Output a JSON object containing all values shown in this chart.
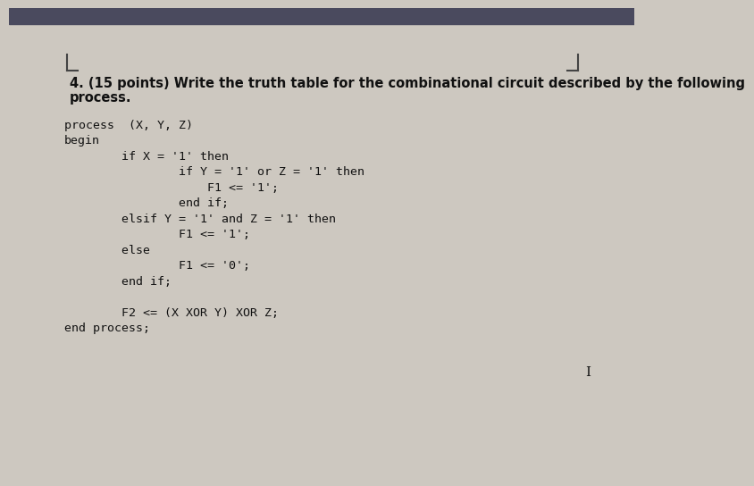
{
  "bg_color": "#cdc8c0",
  "top_bar_color": "#4a4a5e",
  "header_line1": "4. (15 points) Write the truth table for the combinational circuit described by the following",
  "header_line2": "process.",
  "header_fontsize": 10.5,
  "header_color": "#111111",
  "code_lines": [
    "process  (X, Y, Z)",
    "begin",
    "        if X = '1' then",
    "                if Y = '1' or Z = '1' then",
    "                    F1 <= '1';",
    "                end if;",
    "        elsif Y = '1' and Z = '1' then",
    "                F1 <= '1';",
    "        else",
    "                F1 <= '0';",
    "        end if;",
    "",
    "        F2 <= (X XOR Y) XOR Z;",
    "end process;"
  ],
  "code_fontsize": 9.5,
  "code_color": "#111111"
}
